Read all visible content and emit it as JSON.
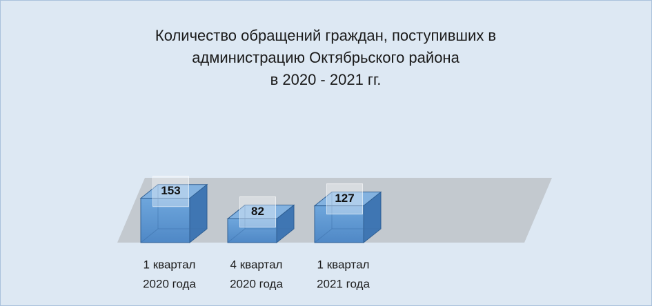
{
  "chart_data": {
    "type": "bar3d",
    "title": [
      "Количество обращений граждан, поступивших в",
      "администрацию Октябрьского района",
      "в 2020 - 2021 гг."
    ],
    "categories": [
      [
        "1 квартал",
        "2020 года"
      ],
      [
        "4 квартал",
        "2020 года"
      ],
      [
        "1 квартал",
        "2021 года"
      ]
    ],
    "values": [
      153,
      82,
      127
    ],
    "color": "#5b9bd5"
  }
}
